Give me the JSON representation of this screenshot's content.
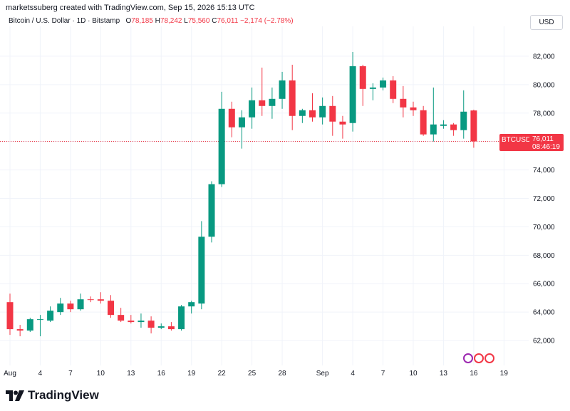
{
  "header": {
    "attribution": "marketssuberg created with TradingView.com, Sep 15, 2026 15:13 UTC",
    "symbol": "Bitcoin / U.S. Dollar · 1D · Bitstamp",
    "o_label": "O",
    "o_value": "78,185",
    "h_label": "H",
    "h_value": "78,242",
    "l_label": "L",
    "l_value": "75,560",
    "c_label": "C",
    "c_value": "76,011",
    "change": "−2,174 (−2.78%)"
  },
  "currency_button": "USD",
  "price_tag": {
    "symbol": "BTCUSD",
    "price": "76,011",
    "countdown": "08:46:19",
    "value": 76011
  },
  "branding": {
    "logo_text": "TradingView",
    "logo_icon": "tradingview-logo-icon"
  },
  "events": [
    "event-icon",
    "us-flag-icon",
    "us-flag-icon"
  ],
  "colors": {
    "up": "#089981",
    "down": "#f23645",
    "grid": "#f0f3fa",
    "price_line": "#f23645"
  },
  "chart_data": {
    "type": "candlestick",
    "y_axis": {
      "min": 60500,
      "max": 83600,
      "ticks": [
        62000,
        64000,
        66000,
        68000,
        70000,
        72000,
        74000,
        76000,
        78000,
        80000,
        82000
      ],
      "tick_labels": [
        "62,000",
        "64,000",
        "66,000",
        "68,000",
        "70,000",
        "72,000",
        "74,000",
        "76,000",
        "78,000",
        "80,000",
        "82,000"
      ]
    },
    "x_axis": {
      "labels": [
        {
          "day": 0,
          "text": "Aug"
        },
        {
          "day": 3,
          "text": "4"
        },
        {
          "day": 6,
          "text": "7"
        },
        {
          "day": 9,
          "text": "10"
        },
        {
          "day": 12,
          "text": "13"
        },
        {
          "day": 15,
          "text": "16"
        },
        {
          "day": 18,
          "text": "19"
        },
        {
          "day": 21,
          "text": "22"
        },
        {
          "day": 24,
          "text": "25"
        },
        {
          "day": 27,
          "text": "28"
        },
        {
          "day": 31,
          "text": "Sep"
        },
        {
          "day": 34,
          "text": "4"
        },
        {
          "day": 37,
          "text": "7"
        },
        {
          "day": 40,
          "text": "10"
        },
        {
          "day": 43,
          "text": "13"
        },
        {
          "day": 46,
          "text": "16"
        },
        {
          "day": 49,
          "text": "19"
        }
      ]
    },
    "candles": [
      {
        "date": "Jul 31",
        "o": 64700,
        "h": 65300,
        "l": 62400,
        "c": 62800
      },
      {
        "date": "Aug 1",
        "o": 62800,
        "h": 63100,
        "l": 62300,
        "c": 62700
      },
      {
        "date": "Aug 2",
        "o": 62700,
        "h": 63600,
        "l": 62600,
        "c": 63500
      },
      {
        "date": "Aug 3",
        "o": 63500,
        "h": 63800,
        "l": 62300,
        "c": 63500
      },
      {
        "date": "Aug 4",
        "o": 63400,
        "h": 64400,
        "l": 63300,
        "c": 64100
      },
      {
        "date": "Aug 5",
        "o": 64000,
        "h": 65000,
        "l": 63800,
        "c": 64600
      },
      {
        "date": "Aug 6",
        "o": 64600,
        "h": 64800,
        "l": 64000,
        "c": 64200
      },
      {
        "date": "Aug 7",
        "o": 64200,
        "h": 65300,
        "l": 64100,
        "c": 64900
      },
      {
        "date": "Aug 8",
        "o": 64900,
        "h": 65100,
        "l": 64700,
        "c": 64850
      },
      {
        "date": "Aug 9",
        "o": 64900,
        "h": 65400,
        "l": 64600,
        "c": 64800
      },
      {
        "date": "Aug 10",
        "o": 64800,
        "h": 65200,
        "l": 63600,
        "c": 63800
      },
      {
        "date": "Aug 11",
        "o": 63800,
        "h": 64300,
        "l": 63300,
        "c": 63400
      },
      {
        "date": "Aug 12",
        "o": 63400,
        "h": 63800,
        "l": 63200,
        "c": 63300
      },
      {
        "date": "Aug 13",
        "o": 63300,
        "h": 63900,
        "l": 62900,
        "c": 63400
      },
      {
        "date": "Aug 14",
        "o": 63400,
        "h": 63700,
        "l": 62500,
        "c": 62900
      },
      {
        "date": "Aug 15",
        "o": 62900,
        "h": 63200,
        "l": 62800,
        "c": 63000
      },
      {
        "date": "Aug 16",
        "o": 63000,
        "h": 63300,
        "l": 62700,
        "c": 62800
      },
      {
        "date": "Aug 17",
        "o": 62800,
        "h": 64500,
        "l": 62700,
        "c": 64400
      },
      {
        "date": "Aug 18",
        "o": 64400,
        "h": 64800,
        "l": 63900,
        "c": 64700
      },
      {
        "date": "Aug 19",
        "o": 64600,
        "h": 70400,
        "l": 64200,
        "c": 69300
      },
      {
        "date": "Aug 20",
        "o": 69300,
        "h": 73200,
        "l": 68900,
        "c": 73000
      },
      {
        "date": "Aug 21",
        "o": 73000,
        "h": 79500,
        "l": 72800,
        "c": 78300
      },
      {
        "date": "Aug 22",
        "o": 78300,
        "h": 78800,
        "l": 76300,
        "c": 77000
      },
      {
        "date": "Aug 23",
        "o": 77000,
        "h": 78200,
        "l": 75500,
        "c": 77700
      },
      {
        "date": "Aug 24",
        "o": 77700,
        "h": 79800,
        "l": 76900,
        "c": 78900
      },
      {
        "date": "Aug 25",
        "o": 78900,
        "h": 81200,
        "l": 77800,
        "c": 78500
      },
      {
        "date": "Aug 26",
        "o": 78500,
        "h": 79800,
        "l": 77600,
        "c": 79000
      },
      {
        "date": "Aug 27",
        "o": 79000,
        "h": 80900,
        "l": 78300,
        "c": 80300
      },
      {
        "date": "Aug 28",
        "o": 80300,
        "h": 81400,
        "l": 76800,
        "c": 77800
      },
      {
        "date": "Aug 29",
        "o": 77800,
        "h": 78300,
        "l": 77300,
        "c": 78200
      },
      {
        "date": "Aug 30",
        "o": 78200,
        "h": 79400,
        "l": 77400,
        "c": 77700
      },
      {
        "date": "Aug 31",
        "o": 77700,
        "h": 79100,
        "l": 77200,
        "c": 78500
      },
      {
        "date": "Sep 1",
        "o": 78500,
        "h": 79200,
        "l": 76400,
        "c": 77400
      },
      {
        "date": "Sep 2",
        "o": 77400,
        "h": 77800,
        "l": 76200,
        "c": 77200
      },
      {
        "date": "Sep 3",
        "o": 77300,
        "h": 82300,
        "l": 76700,
        "c": 81300
      },
      {
        "date": "Sep 4",
        "o": 81300,
        "h": 81400,
        "l": 78500,
        "c": 79700
      },
      {
        "date": "Sep 5",
        "o": 79700,
        "h": 80100,
        "l": 78900,
        "c": 79800
      },
      {
        "date": "Sep 6",
        "o": 79800,
        "h": 80500,
        "l": 79600,
        "c": 80300
      },
      {
        "date": "Sep 7",
        "o": 80300,
        "h": 80600,
        "l": 78700,
        "c": 79000
      },
      {
        "date": "Sep 8",
        "o": 79000,
        "h": 79900,
        "l": 77700,
        "c": 78400
      },
      {
        "date": "Sep 9",
        "o": 78400,
        "h": 78800,
        "l": 77800,
        "c": 78200
      },
      {
        "date": "Sep 10",
        "o": 78200,
        "h": 78500,
        "l": 76400,
        "c": 76500
      },
      {
        "date": "Sep 11",
        "o": 76500,
        "h": 79800,
        "l": 76000,
        "c": 77200
      },
      {
        "date": "Sep 12",
        "o": 77100,
        "h": 77500,
        "l": 76900,
        "c": 77200
      },
      {
        "date": "Sep 13",
        "o": 77200,
        "h": 77300,
        "l": 76400,
        "c": 76800
      },
      {
        "date": "Sep 14",
        "o": 76800,
        "h": 79600,
        "l": 76200,
        "c": 78100
      },
      {
        "date": "Sep 15",
        "o": 78185,
        "h": 78242,
        "l": 75560,
        "c": 76011
      }
    ]
  }
}
